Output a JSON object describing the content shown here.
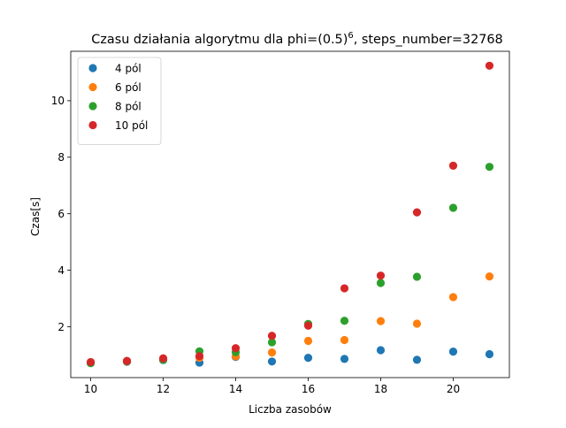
{
  "chart_data": {
    "type": "scatter",
    "title": {
      "prefix": "Czasu działania algorytmu dla phi=(0.5)",
      "superscript": "6",
      "suffix": ", steps_number=32768"
    },
    "xlabel": "Liczba zasobów",
    "ylabel": "Czas[s]",
    "xlim": [
      9.45,
      21.55
    ],
    "ylim": [
      0.2,
      11.75
    ],
    "xticks": [
      10,
      12,
      14,
      16,
      18,
      20
    ],
    "yticks": [
      2,
      4,
      6,
      8,
      10
    ],
    "grid": false,
    "legend_position": "top-left",
    "x": [
      10,
      11,
      12,
      13,
      14,
      15,
      16,
      17,
      18,
      19,
      20,
      21
    ],
    "series": [
      {
        "name": "4 pól",
        "color": "#1f77b4",
        "values": [
          0.72,
          0.76,
          0.82,
          0.73,
          0.93,
          0.77,
          0.9,
          0.86,
          1.17,
          0.83,
          1.12,
          1.03
        ]
      },
      {
        "name": "6 pól",
        "color": "#ff7f0e",
        "values": [
          0.72,
          0.77,
          0.84,
          0.9,
          0.95,
          1.09,
          1.5,
          1.53,
          2.2,
          2.11,
          3.05,
          3.78
        ]
      },
      {
        "name": "8 pól",
        "color": "#2ca02c",
        "values": [
          0.71,
          0.78,
          0.83,
          1.13,
          1.1,
          1.45,
          2.1,
          2.21,
          3.55,
          3.77,
          6.21,
          7.66
        ]
      },
      {
        "name": "10 pól",
        "color": "#d62728",
        "values": [
          0.75,
          0.79,
          0.88,
          0.96,
          1.24,
          1.68,
          2.04,
          3.36,
          3.81,
          6.05,
          7.7,
          11.24
        ]
      }
    ]
  }
}
